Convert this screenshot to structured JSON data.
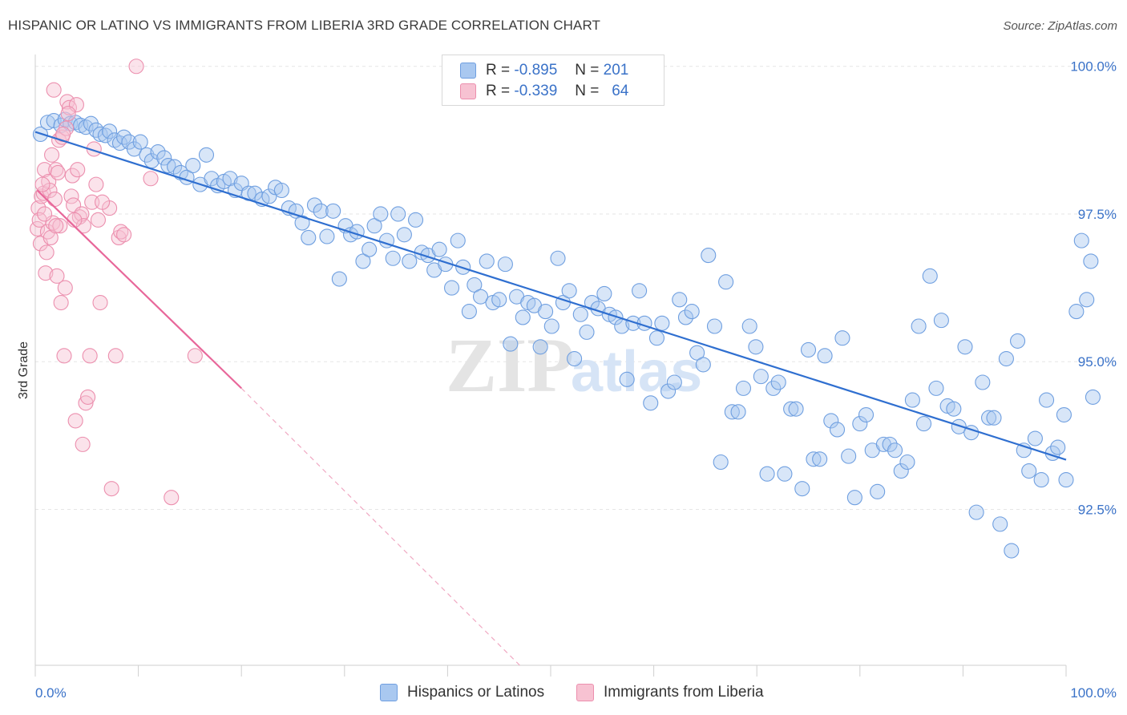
{
  "title": "HISPANIC OR LATINO VS IMMIGRANTS FROM LIBERIA 3RD GRADE CORRELATION CHART",
  "source": "Source: ZipAtlas.com",
  "watermark": {
    "zip": "ZIP",
    "atlas": "atlas"
  },
  "legend": {
    "rows": [
      {
        "r_label": "R = ",
        "r_value": "-0.895",
        "n_label": "N = ",
        "n_value": "201",
        "color": "#a9c8f0",
        "border": "#6f9fe0"
      },
      {
        "r_label": "R = ",
        "r_value": "-0.339",
        "n_label": "N = ",
        "n_value": "64",
        "color": "#f7c2d2",
        "border": "#ec8fae"
      }
    ]
  },
  "bottom_legend": [
    {
      "label": "Hispanics or Latinos",
      "color": "#a9c8f0",
      "border": "#6f9fe0"
    },
    {
      "label": "Immigrants from Liberia",
      "color": "#f7c2d2",
      "border": "#ec8fae"
    }
  ],
  "chart_data": {
    "type": "scatter",
    "title": "HISPANIC OR LATINO VS IMMIGRANTS FROM LIBERIA 3RD GRADE CORRELATION CHART",
    "xlabel": "",
    "ylabel": "3rd Grade",
    "xlim": [
      0,
      100
    ],
    "ylim": [
      89.86,
      100.2
    ],
    "x_ticks": [
      "0.0%",
      "100.0%"
    ],
    "y_ticks": [
      {
        "value": 100.0,
        "label": "100.0%"
      },
      {
        "value": 97.5,
        "label": "97.5%"
      },
      {
        "value": 95.0,
        "label": "95.0%"
      },
      {
        "value": 92.5,
        "label": "92.5%"
      }
    ],
    "grid": true,
    "series": [
      {
        "name": "Hispanics or Latinos",
        "color": "#6f9fe0",
        "fill": "#a9c8f0",
        "trend": {
          "x": [
            0,
            100
          ],
          "y": [
            98.89,
            93.34
          ]
        },
        "points": [
          [
            0.5,
            98.85
          ],
          [
            1.2,
            99.05
          ],
          [
            1.8,
            99.08
          ],
          [
            2.5,
            99.0
          ],
          [
            2.9,
            99.1
          ],
          [
            3.4,
            99.03
          ],
          [
            3.9,
            99.05
          ],
          [
            4.4,
            99.0
          ],
          [
            4.9,
            98.97
          ],
          [
            5.4,
            99.03
          ],
          [
            5.9,
            98.92
          ],
          [
            6.3,
            98.85
          ],
          [
            6.8,
            98.83
          ],
          [
            7.2,
            98.9
          ],
          [
            7.7,
            98.75
          ],
          [
            8.2,
            98.7
          ],
          [
            8.6,
            98.8
          ],
          [
            9.1,
            98.72
          ],
          [
            9.6,
            98.6
          ],
          [
            10.2,
            98.72
          ],
          [
            10.8,
            98.5
          ],
          [
            11.3,
            98.4
          ],
          [
            11.9,
            98.55
          ],
          [
            12.5,
            98.45
          ],
          [
            12.9,
            98.32
          ],
          [
            13.5,
            98.3
          ],
          [
            14.1,
            98.2
          ],
          [
            14.7,
            98.12
          ],
          [
            15.3,
            98.32
          ],
          [
            16.0,
            98.0
          ],
          [
            16.6,
            98.5
          ],
          [
            17.1,
            98.1
          ],
          [
            17.7,
            97.98
          ],
          [
            18.3,
            98.05
          ],
          [
            18.9,
            98.1
          ],
          [
            19.4,
            97.9
          ],
          [
            20.0,
            98.02
          ],
          [
            20.7,
            97.85
          ],
          [
            21.3,
            97.85
          ],
          [
            22.0,
            97.75
          ],
          [
            22.7,
            97.8
          ],
          [
            23.3,
            97.95
          ],
          [
            23.9,
            97.9
          ],
          [
            24.6,
            97.6
          ],
          [
            25.3,
            97.55
          ],
          [
            25.9,
            97.35
          ],
          [
            26.5,
            97.1
          ],
          [
            27.1,
            97.65
          ],
          [
            27.7,
            97.55
          ],
          [
            28.3,
            97.12
          ],
          [
            28.9,
            97.55
          ],
          [
            29.5,
            96.4
          ],
          [
            30.1,
            97.3
          ],
          [
            30.6,
            97.15
          ],
          [
            31.2,
            97.2
          ],
          [
            31.8,
            96.7
          ],
          [
            32.4,
            96.9
          ],
          [
            32.9,
            97.3
          ],
          [
            33.5,
            97.5
          ],
          [
            34.1,
            97.05
          ],
          [
            34.7,
            96.75
          ],
          [
            35.2,
            97.5
          ],
          [
            35.8,
            97.15
          ],
          [
            36.3,
            96.7
          ],
          [
            36.9,
            97.4
          ],
          [
            37.5,
            96.85
          ],
          [
            38.1,
            96.8
          ],
          [
            38.7,
            96.55
          ],
          [
            39.2,
            96.9
          ],
          [
            39.8,
            96.65
          ],
          [
            40.4,
            96.25
          ],
          [
            41.0,
            97.05
          ],
          [
            41.5,
            96.6
          ],
          [
            42.1,
            95.85
          ],
          [
            42.6,
            96.3
          ],
          [
            43.2,
            96.1
          ],
          [
            43.8,
            96.7
          ],
          [
            44.4,
            96.0
          ],
          [
            45.0,
            96.05
          ],
          [
            45.6,
            96.65
          ],
          [
            46.1,
            95.3
          ],
          [
            46.7,
            96.1
          ],
          [
            47.3,
            95.75
          ],
          [
            47.8,
            96.0
          ],
          [
            48.4,
            95.95
          ],
          [
            49.0,
            95.25
          ],
          [
            49.5,
            95.85
          ],
          [
            50.1,
            95.6
          ],
          [
            50.7,
            96.75
          ],
          [
            51.2,
            96.0
          ],
          [
            51.8,
            96.2
          ],
          [
            52.3,
            95.05
          ],
          [
            52.9,
            95.8
          ],
          [
            53.5,
            95.5
          ],
          [
            54.0,
            96.0
          ],
          [
            54.6,
            95.9
          ],
          [
            55.2,
            96.15
          ],
          [
            55.7,
            95.8
          ],
          [
            56.3,
            95.75
          ],
          [
            56.9,
            95.6
          ],
          [
            57.4,
            94.7
          ],
          [
            58.0,
            95.65
          ],
          [
            58.6,
            96.2
          ],
          [
            59.1,
            95.65
          ],
          [
            59.7,
            94.3
          ],
          [
            60.3,
            95.4
          ],
          [
            60.8,
            95.65
          ],
          [
            61.4,
            94.5
          ],
          [
            62.0,
            94.65
          ],
          [
            62.5,
            96.05
          ],
          [
            63.1,
            95.75
          ],
          [
            63.7,
            95.85
          ],
          [
            64.2,
            95.15
          ],
          [
            64.8,
            94.95
          ],
          [
            65.3,
            96.8
          ],
          [
            65.9,
            95.6
          ],
          [
            66.5,
            93.3
          ],
          [
            67.0,
            96.35
          ],
          [
            67.6,
            94.15
          ],
          [
            68.2,
            94.15
          ],
          [
            68.7,
            94.55
          ],
          [
            69.3,
            95.6
          ],
          [
            69.9,
            95.25
          ],
          [
            70.4,
            94.75
          ],
          [
            71.0,
            93.1
          ],
          [
            71.6,
            94.55
          ],
          [
            72.1,
            94.65
          ],
          [
            72.7,
            93.1
          ],
          [
            73.3,
            94.2
          ],
          [
            73.8,
            94.2
          ],
          [
            74.4,
            92.85
          ],
          [
            75.0,
            95.2
          ],
          [
            75.5,
            93.35
          ],
          [
            76.1,
            93.35
          ],
          [
            76.6,
            95.1
          ],
          [
            77.2,
            94.0
          ],
          [
            77.8,
            93.85
          ],
          [
            78.3,
            95.4
          ],
          [
            78.9,
            93.4
          ],
          [
            79.5,
            92.7
          ],
          [
            80.0,
            93.95
          ],
          [
            80.6,
            94.1
          ],
          [
            81.2,
            93.5
          ],
          [
            81.7,
            92.8
          ],
          [
            82.3,
            93.6
          ],
          [
            82.9,
            93.6
          ],
          [
            83.4,
            93.5
          ],
          [
            84.0,
            93.15
          ],
          [
            84.6,
            93.3
          ],
          [
            85.1,
            94.35
          ],
          [
            85.7,
            95.6
          ],
          [
            86.2,
            93.95
          ],
          [
            86.8,
            96.45
          ],
          [
            87.4,
            94.55
          ],
          [
            87.9,
            95.7
          ],
          [
            88.5,
            94.25
          ],
          [
            89.1,
            94.2
          ],
          [
            89.6,
            93.9
          ],
          [
            90.2,
            95.25
          ],
          [
            90.8,
            93.8
          ],
          [
            91.3,
            92.45
          ],
          [
            91.9,
            94.65
          ],
          [
            92.5,
            94.05
          ],
          [
            93.0,
            94.05
          ],
          [
            93.6,
            92.25
          ],
          [
            94.2,
            95.05
          ],
          [
            94.7,
            91.8
          ],
          [
            95.3,
            95.35
          ],
          [
            95.9,
            93.5
          ],
          [
            96.4,
            93.15
          ],
          [
            97.0,
            93.7
          ],
          [
            97.6,
            93.0
          ],
          [
            98.1,
            94.35
          ],
          [
            98.7,
            93.45
          ],
          [
            99.2,
            93.55
          ],
          [
            99.8,
            94.1
          ],
          [
            100.0,
            93.0
          ],
          [
            101.0,
            95.85
          ],
          [
            101.5,
            97.05
          ],
          [
            102.0,
            96.05
          ],
          [
            102.4,
            96.7
          ],
          [
            102.6,
            94.4
          ]
        ]
      },
      {
        "name": "Immigrants from Liberia",
        "color": "#ec8fae",
        "fill": "#f7c2d2",
        "trend": {
          "x": [
            0.2,
            20.0
          ],
          "y": [
            97.9,
            94.55
          ]
        },
        "trend_ext": {
          "x": [
            20.0,
            47.0
          ],
          "y": [
            94.55,
            89.86
          ]
        },
        "points": [
          [
            0.2,
            97.25
          ],
          [
            0.3,
            97.6
          ],
          [
            0.4,
            97.4
          ],
          [
            0.5,
            97.0
          ],
          [
            0.6,
            97.8
          ],
          [
            0.8,
            97.85
          ],
          [
            0.9,
            98.25
          ],
          [
            1.0,
            96.5
          ],
          [
            1.1,
            96.85
          ],
          [
            1.2,
            97.2
          ],
          [
            1.3,
            98.05
          ],
          [
            1.5,
            97.1
          ],
          [
            1.6,
            98.5
          ],
          [
            1.7,
            97.35
          ],
          [
            1.8,
            99.6
          ],
          [
            2.0,
            98.25
          ],
          [
            2.1,
            96.45
          ],
          [
            2.2,
            98.2
          ],
          [
            2.3,
            98.75
          ],
          [
            2.4,
            97.3
          ],
          [
            2.5,
            96.0
          ],
          [
            2.6,
            98.8
          ],
          [
            2.8,
            95.1
          ],
          [
            2.9,
            96.25
          ],
          [
            3.0,
            98.95
          ],
          [
            3.1,
            99.4
          ],
          [
            3.3,
            99.3
          ],
          [
            3.5,
            97.8
          ],
          [
            3.6,
            98.15
          ],
          [
            3.7,
            97.65
          ],
          [
            3.9,
            94.0
          ],
          [
            4.0,
            99.35
          ],
          [
            4.1,
            98.25
          ],
          [
            4.3,
            97.45
          ],
          [
            4.5,
            97.5
          ],
          [
            4.7,
            97.3
          ],
          [
            4.9,
            94.3
          ],
          [
            5.1,
            94.4
          ],
          [
            5.3,
            95.1
          ],
          [
            5.5,
            97.7
          ],
          [
            5.7,
            98.6
          ],
          [
            5.9,
            98.0
          ],
          [
            6.1,
            97.4
          ],
          [
            6.3,
            96.0
          ],
          [
            7.2,
            97.6
          ],
          [
            7.4,
            92.85
          ],
          [
            7.8,
            95.1
          ],
          [
            8.1,
            97.1
          ],
          [
            8.3,
            97.2
          ],
          [
            8.6,
            97.15
          ],
          [
            9.8,
            100.0
          ],
          [
            11.2,
            98.1
          ],
          [
            13.2,
            92.7
          ],
          [
            15.5,
            95.1
          ],
          [
            4.6,
            93.6
          ],
          [
            1.4,
            97.9
          ],
          [
            0.7,
            98.0
          ],
          [
            2.7,
            98.85
          ],
          [
            3.2,
            99.2
          ],
          [
            1.9,
            97.75
          ],
          [
            0.9,
            97.5
          ],
          [
            6.5,
            97.7
          ],
          [
            2.0,
            97.3
          ],
          [
            3.8,
            97.4
          ]
        ]
      }
    ]
  }
}
